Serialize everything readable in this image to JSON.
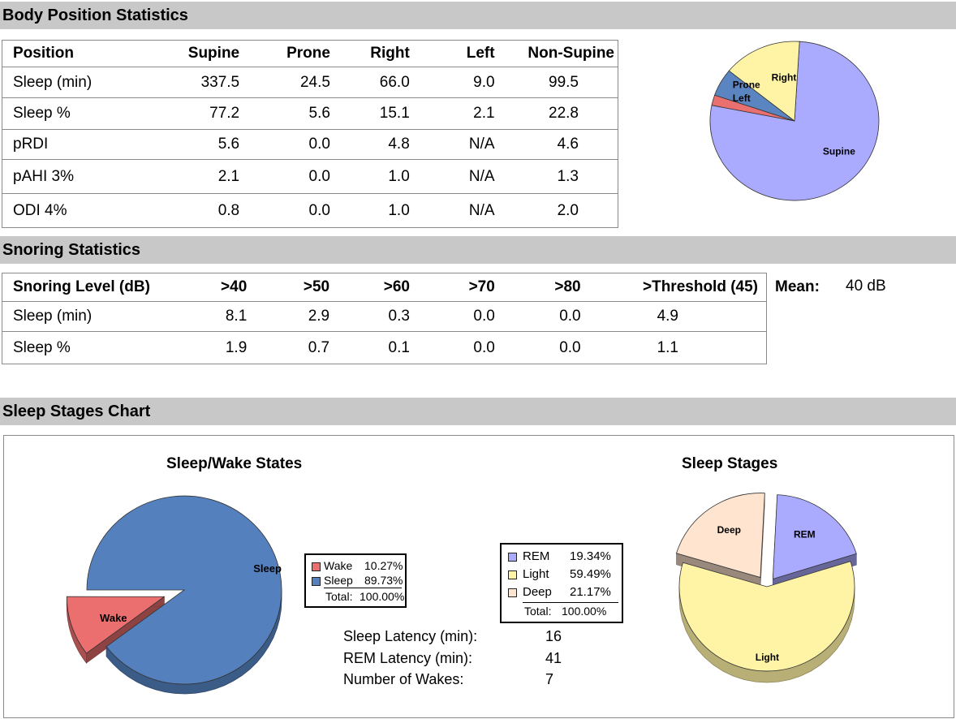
{
  "body_position": {
    "header": "Body Position Statistics",
    "columns": [
      "Position",
      "Supine",
      "Prone",
      "Right",
      "Left",
      "Non-Supine"
    ],
    "rows": [
      [
        "Sleep (min)",
        "337.5",
        "24.5",
        "66.0",
        "9.0",
        "99.5"
      ],
      [
        "Sleep %",
        "77.2",
        "5.6",
        "15.1",
        "2.1",
        "22.8"
      ],
      [
        "pRDI",
        "5.6",
        "0.0",
        "4.8",
        "N/A",
        "4.6"
      ],
      [
        "pAHI 3%",
        "2.1",
        "0.0",
        "1.0",
        "N/A",
        "1.3"
      ],
      [
        "ODI 4%",
        "0.8",
        "0.0",
        "1.0",
        "N/A",
        "2.0"
      ]
    ]
  },
  "snoring": {
    "header": "Snoring Statistics",
    "columns": [
      "Snoring Level (dB)",
      ">40",
      ">50",
      ">60",
      ">70",
      ">80",
      ">Threshold (45)"
    ],
    "rows": [
      [
        "Sleep (min)",
        "8.1",
        "2.9",
        "0.3",
        "0.0",
        "0.0",
        "4.9"
      ],
      [
        "Sleep %",
        "1.9",
        "0.7",
        "0.1",
        "0.0",
        "0.0",
        "1.1"
      ]
    ],
    "mean_label": "Mean:",
    "mean_value": "40 dB"
  },
  "sleep_stages_section": {
    "header": "Sleep Stages Chart",
    "sleep_latency_label": "Sleep Latency (min):",
    "sleep_latency_value": "16",
    "rem_latency_label": "REM Latency (min):",
    "rem_latency_value": "41",
    "wakes_label": "Number of Wakes:",
    "wakes_value": "7"
  },
  "chart_data": [
    {
      "type": "pie",
      "title": "",
      "labels": [
        "Supine",
        "Prone",
        "Right",
        "Left"
      ],
      "values": [
        77.2,
        5.6,
        15.1,
        2.1
      ],
      "colors": [
        "#aaaaff",
        "#5b85c0",
        "#fff3a5",
        "#ea7070"
      ]
    },
    {
      "type": "pie",
      "title": "Sleep/Wake States",
      "labels": [
        "Wake",
        "Sleep"
      ],
      "values": [
        10.27,
        89.73
      ],
      "colors": [
        "#ec6f6f",
        "#5480bd"
      ],
      "legend": [
        {
          "name": "Wake",
          "pct": "10.27%"
        },
        {
          "name": "Sleep",
          "pct": "89.73%"
        }
      ],
      "total_label": "Total:",
      "total_value": "100.00%"
    },
    {
      "type": "pie",
      "title": "Sleep Stages",
      "labels": [
        "REM",
        "Light",
        "Deep"
      ],
      "values": [
        19.34,
        59.49,
        21.17
      ],
      "colors": [
        "#aaaaff",
        "#fff3a5",
        "#ffe4d0"
      ],
      "legend": [
        {
          "name": "REM",
          "pct": "19.34%"
        },
        {
          "name": "Light",
          "pct": "59.49%"
        },
        {
          "name": "Deep",
          "pct": "21.17%"
        }
      ],
      "total_label": "Total:",
      "total_value": "100.00%"
    }
  ]
}
